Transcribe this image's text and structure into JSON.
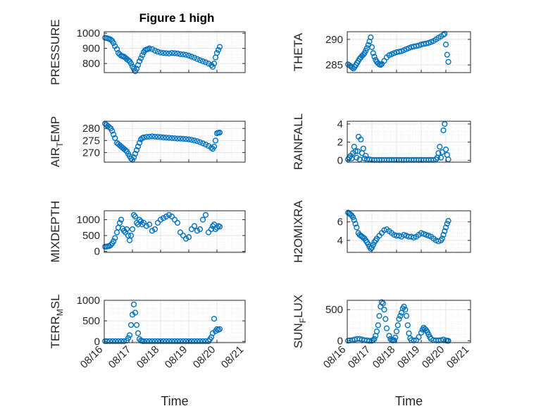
{
  "figure": {
    "title": "Figure 1 high"
  },
  "style": {
    "marker_color": "#0072BD",
    "grid_color": "#dedede",
    "axis_color": "#262626",
    "background": "#ffffff"
  },
  "chart_data": [
    {
      "type": "scatter",
      "id": "pressure",
      "ylabel": "PRESSURE",
      "ylabel_sub": null,
      "ylim": [
        740,
        1010
      ],
      "yticks": [
        800,
        900,
        1000
      ],
      "xlim": [
        0,
        5
      ],
      "xticks_visible": false,
      "x": [
        0.03,
        0.08,
        0.13,
        0.18,
        0.23,
        0.28,
        0.33,
        0.38,
        0.45,
        0.5,
        0.55,
        0.6,
        0.65,
        0.7,
        0.75,
        0.8,
        0.85,
        0.9,
        0.95,
        1.0,
        1.05,
        1.1,
        1.15,
        1.2,
        1.25,
        1.3,
        1.35,
        1.4,
        1.45,
        1.5,
        1.55,
        1.6,
        1.7,
        1.8,
        1.9,
        2.0,
        2.1,
        2.2,
        2.3,
        2.4,
        2.5,
        2.6,
        2.7,
        2.8,
        2.9,
        3.0,
        3.1,
        3.2,
        3.3,
        3.4,
        3.5,
        3.6,
        3.7,
        3.8,
        3.85,
        3.9,
        3.95,
        4.0,
        4.05,
        4.1
      ],
      "y": [
        970,
        968,
        966,
        962,
        958,
        950,
        935,
        915,
        895,
        870,
        860,
        852,
        848,
        845,
        838,
        830,
        822,
        815,
        800,
        780,
        765,
        750,
        765,
        790,
        815,
        835,
        855,
        875,
        888,
        892,
        895,
        900,
        895,
        885,
        878,
        872,
        870,
        868,
        866,
        870,
        868,
        866,
        862,
        860,
        858,
        852,
        845,
        838,
        830,
        822,
        815,
        808,
        800,
        790,
        778,
        800,
        840,
        870,
        890,
        910
      ]
    },
    {
      "type": "scatter",
      "id": "theta",
      "ylabel": "THETA",
      "ylabel_sub": null,
      "ylim": [
        283.5,
        291.5
      ],
      "yticks": [
        285,
        290
      ],
      "xlim": [
        0,
        5
      ],
      "xticks_visible": false,
      "x": [
        0.03,
        0.1,
        0.15,
        0.2,
        0.25,
        0.3,
        0.35,
        0.4,
        0.45,
        0.5,
        0.55,
        0.6,
        0.65,
        0.7,
        0.75,
        0.8,
        0.85,
        0.9,
        0.95,
        1.0,
        1.05,
        1.1,
        1.15,
        1.2,
        1.25,
        1.3,
        1.35,
        1.4,
        1.5,
        1.6,
        1.7,
        1.8,
        1.9,
        2.0,
        2.1,
        2.2,
        2.3,
        2.4,
        2.5,
        2.6,
        2.7,
        2.8,
        2.9,
        3.0,
        3.1,
        3.2,
        3.3,
        3.4,
        3.5,
        3.6,
        3.7,
        3.8,
        3.9,
        3.95,
        4.0,
        4.05,
        4.1
      ],
      "y": [
        285.1,
        284.9,
        284.7,
        284.5,
        284.3,
        284.6,
        285.0,
        285.4,
        285.8,
        286.2,
        286.5,
        286.8,
        287.0,
        287.3,
        287.8,
        288.3,
        288.9,
        289.6,
        290.4,
        288.5,
        287.3,
        286.6,
        286.0,
        285.6,
        285.3,
        285.1,
        285.0,
        285.2,
        285.8,
        286.5,
        286.9,
        287.1,
        287.3,
        287.5,
        287.6,
        287.7,
        287.9,
        288.1,
        288.3,
        288.5,
        288.6,
        288.7,
        288.8,
        289.0,
        289.1,
        289.2,
        289.3,
        289.5,
        289.7,
        290.0,
        290.3,
        290.6,
        290.9,
        291.1,
        289.0,
        287.0,
        285.6
      ]
    },
    {
      "type": "scatter",
      "id": "air_temp",
      "ylabel": "AIR_TEMP",
      "ylabel_parts": [
        "AIR",
        "T",
        "EMP"
      ],
      "ylim": [
        266,
        283
      ],
      "yticks": [
        270,
        275,
        280
      ],
      "xlim": [
        0,
        5
      ],
      "xticks_visible": false,
      "x": [
        0.03,
        0.08,
        0.13,
        0.18,
        0.23,
        0.28,
        0.33,
        0.38,
        0.45,
        0.5,
        0.55,
        0.6,
        0.65,
        0.7,
        0.75,
        0.8,
        0.85,
        0.9,
        0.95,
        1.0,
        1.05,
        1.1,
        1.15,
        1.2,
        1.25,
        1.3,
        1.35,
        1.4,
        1.5,
        1.6,
        1.7,
        1.8,
        1.9,
        2.0,
        2.1,
        2.2,
        2.3,
        2.4,
        2.5,
        2.6,
        2.7,
        2.8,
        2.9,
        3.0,
        3.1,
        3.2,
        3.3,
        3.4,
        3.5,
        3.6,
        3.7,
        3.8,
        3.85,
        3.9,
        3.95,
        4.0,
        4.05,
        4.1
      ],
      "y": [
        282,
        281.5,
        281,
        280.5,
        280,
        279,
        277.5,
        276,
        274,
        273.5,
        273,
        272.5,
        272,
        271.5,
        271,
        270.5,
        269.5,
        268.5,
        267.5,
        267,
        268,
        269.5,
        271,
        272.5,
        274,
        275.5,
        276,
        276.3,
        276.5,
        276.6,
        276.7,
        276.6,
        276.5,
        276.4,
        276.3,
        276.2,
        276.1,
        276,
        275.9,
        275.8,
        275.8,
        275.7,
        275.6,
        275.5,
        275.3,
        275,
        274.7,
        274.3,
        273.8,
        273.3,
        272.7,
        272,
        271.5,
        272.5,
        275,
        278,
        278.2,
        278.3
      ]
    },
    {
      "type": "scatter",
      "id": "rainfall",
      "ylabel": "RAINFALL",
      "ylabel_sub": null,
      "ylim": [
        -0.2,
        4.3
      ],
      "yticks": [
        0,
        2,
        4
      ],
      "xlim": [
        0,
        5
      ],
      "xticks_visible": false,
      "x": [
        0.03,
        0.08,
        0.13,
        0.18,
        0.23,
        0.28,
        0.33,
        0.38,
        0.42,
        0.46,
        0.5,
        0.55,
        0.6,
        0.65,
        0.7,
        0.75,
        0.8,
        0.9,
        1.0,
        1.1,
        1.2,
        1.3,
        1.4,
        1.5,
        1.6,
        1.7,
        1.8,
        1.9,
        2.0,
        2.1,
        2.2,
        2.3,
        2.4,
        2.5,
        2.6,
        2.7,
        2.8,
        2.9,
        3.0,
        3.1,
        3.2,
        3.3,
        3.4,
        3.5,
        3.6,
        3.65,
        3.7,
        3.75,
        3.8,
        3.85,
        3.9,
        3.95,
        4.0,
        4.05,
        4.1
      ],
      "y": [
        0.1,
        0.3,
        0.5,
        0.2,
        0.8,
        1.5,
        1.0,
        0.3,
        1.0,
        2.6,
        0.1,
        2.3,
        0.8,
        1.3,
        0.2,
        0.5,
        0.1,
        0.1,
        0.05,
        0.05,
        0.05,
        0.05,
        0.05,
        0.05,
        0.05,
        0.05,
        0.05,
        0.05,
        0.05,
        0.05,
        0.05,
        0.05,
        0.05,
        0.05,
        0.05,
        0.05,
        0.05,
        0.05,
        0.05,
        0.05,
        0.05,
        0.05,
        0.05,
        0.05,
        0.1,
        0.3,
        0.8,
        1.5,
        0.3,
        0.9,
        3.3,
        4.0,
        1.2,
        0.6,
        0.1
      ]
    },
    {
      "type": "scatter",
      "id": "mixdepth",
      "ylabel": "MIXDEPTH",
      "ylabel_sub": null,
      "ylim": [
        -30,
        1280
      ],
      "yticks": [
        0,
        500,
        1000
      ],
      "xlim": [
        0,
        5
      ],
      "xticks_visible": false,
      "x": [
        0.03,
        0.08,
        0.13,
        0.18,
        0.23,
        0.28,
        0.33,
        0.38,
        0.45,
        0.5,
        0.55,
        0.6,
        0.65,
        0.7,
        0.75,
        0.8,
        0.85,
        0.9,
        0.95,
        1.0,
        1.05,
        1.1,
        1.15,
        1.2,
        1.25,
        1.3,
        1.35,
        1.4,
        1.5,
        1.6,
        1.7,
        1.8,
        1.9,
        2.0,
        2.1,
        2.2,
        2.3,
        2.4,
        2.5,
        2.6,
        2.7,
        2.8,
        2.9,
        3.0,
        3.1,
        3.2,
        3.3,
        3.4,
        3.5,
        3.6,
        3.7,
        3.8,
        3.85,
        3.9,
        3.95,
        4.0,
        4.05,
        4.1
      ],
      "y": [
        150,
        150,
        160,
        170,
        200,
        250,
        320,
        420,
        600,
        750,
        900,
        1000,
        720,
        650,
        600,
        700,
        500,
        350,
        500,
        700,
        1150,
        1100,
        900,
        850,
        1000,
        950,
        850,
        900,
        800,
        850,
        650,
        700,
        900,
        1000,
        1050,
        1100,
        1150,
        1100,
        1000,
        900,
        600,
        500,
        400,
        450,
        700,
        800,
        650,
        700,
        1000,
        1150,
        600,
        700,
        800,
        850,
        700,
        750,
        800,
        780
      ]
    },
    {
      "type": "scatter",
      "id": "h2omixra",
      "ylabel": "H2OMIXRA",
      "ylabel_sub": null,
      "ylim": [
        2.7,
        7.2
      ],
      "yticks": [
        4,
        6
      ],
      "xlim": [
        0,
        5
      ],
      "xticks_visible": false,
      "x": [
        0.03,
        0.08,
        0.13,
        0.18,
        0.23,
        0.28,
        0.33,
        0.38,
        0.45,
        0.5,
        0.55,
        0.6,
        0.65,
        0.7,
        0.75,
        0.8,
        0.85,
        0.9,
        0.95,
        1.0,
        1.05,
        1.1,
        1.15,
        1.2,
        1.3,
        1.4,
        1.5,
        1.6,
        1.7,
        1.8,
        1.9,
        2.0,
        2.1,
        2.2,
        2.3,
        2.4,
        2.5,
        2.6,
        2.7,
        2.8,
        2.9,
        3.0,
        3.1,
        3.2,
        3.3,
        3.4,
        3.5,
        3.6,
        3.7,
        3.8,
        3.85,
        3.9,
        3.95,
        4.0,
        4.05,
        4.1
      ],
      "y": [
        7.0,
        6.9,
        6.8,
        6.7,
        6.5,
        6.2,
        5.8,
        5.4,
        4.8,
        4.6,
        4.5,
        4.4,
        4.3,
        4.2,
        4.0,
        3.8,
        3.6,
        3.3,
        3.1,
        3.2,
        3.5,
        3.8,
        4.0,
        4.2,
        4.5,
        4.8,
        5.1,
        5.2,
        5.0,
        4.8,
        4.6,
        4.5,
        4.5,
        4.4,
        4.6,
        4.5,
        4.4,
        4.4,
        4.3,
        4.4,
        4.6,
        4.8,
        4.7,
        4.6,
        4.5,
        4.4,
        4.2,
        4.0,
        3.9,
        4.0,
        4.2,
        4.6,
        5.0,
        5.4,
        5.8,
        6.1
      ]
    },
    {
      "type": "scatter",
      "id": "terr_msl",
      "ylabel": "TERR_MSL",
      "ylabel_parts": [
        "TERR",
        "M",
        "SL"
      ],
      "ylim": [
        -30,
        1000
      ],
      "yticks": [
        0,
        500,
        1000
      ],
      "xlim": [
        0,
        5
      ],
      "xticks_visible": true,
      "xticklabels": [
        "08/16",
        "08/17",
        "08/18",
        "08/19",
        "08/20",
        "08/21"
      ],
      "xlabel": "Time",
      "x": [
        0.03,
        0.1,
        0.2,
        0.3,
        0.4,
        0.5,
        0.6,
        0.7,
        0.8,
        0.85,
        0.9,
        0.95,
        1.0,
        1.05,
        1.1,
        1.15,
        1.2,
        1.25,
        1.3,
        1.35,
        1.4,
        1.5,
        1.6,
        1.7,
        1.8,
        1.9,
        2.0,
        2.1,
        2.2,
        2.3,
        2.4,
        2.5,
        2.6,
        2.7,
        2.8,
        2.9,
        3.0,
        3.1,
        3.2,
        3.3,
        3.4,
        3.5,
        3.6,
        3.7,
        3.75,
        3.8,
        3.85,
        3.9,
        3.95,
        4.0,
        4.05,
        4.1
      ],
      "y": [
        5,
        5,
        5,
        5,
        5,
        5,
        5,
        5,
        20,
        80,
        150,
        400,
        650,
        900,
        700,
        400,
        200,
        60,
        20,
        10,
        5,
        5,
        5,
        5,
        5,
        5,
        5,
        5,
        5,
        5,
        5,
        5,
        5,
        5,
        5,
        5,
        5,
        5,
        5,
        5,
        5,
        5,
        5,
        5,
        50,
        100,
        200,
        550,
        250,
        300,
        280,
        300
      ]
    },
    {
      "type": "scatter",
      "id": "sun_flux",
      "ylabel": "SUN_FLUX",
      "ylabel_parts": [
        "SUN",
        "F",
        "LUX"
      ],
      "ylim": [
        -30,
        650
      ],
      "yticks": [
        0,
        500
      ],
      "xlim": [
        0,
        5
      ],
      "xticks_visible": true,
      "xticklabels": [
        "08/16",
        "08/17",
        "08/18",
        "08/19",
        "08/20",
        "08/21"
      ],
      "xlabel": "Time",
      "x": [
        0.03,
        0.1,
        0.2,
        0.3,
        0.4,
        0.5,
        0.6,
        0.7,
        0.8,
        0.9,
        1.0,
        1.05,
        1.1,
        1.15,
        1.2,
        1.25,
        1.3,
        1.35,
        1.4,
        1.45,
        1.5,
        1.55,
        1.6,
        1.7,
        1.75,
        1.8,
        1.85,
        1.9,
        1.95,
        2.0,
        2.05,
        2.1,
        2.15,
        2.2,
        2.25,
        2.3,
        2.35,
        2.4,
        2.45,
        2.5,
        2.55,
        2.6,
        2.7,
        2.8,
        2.9,
        3.0,
        3.05,
        3.1,
        3.15,
        3.2,
        3.25,
        3.3,
        3.35,
        3.4,
        3.5,
        3.6,
        3.7,
        3.8,
        3.9,
        4.0,
        4.05,
        4.1
      ],
      "y": [
        0,
        5,
        10,
        20,
        30,
        30,
        20,
        10,
        5,
        0,
        0,
        10,
        30,
        80,
        150,
        250,
        400,
        550,
        620,
        600,
        500,
        350,
        200,
        80,
        30,
        10,
        5,
        10,
        50,
        150,
        250,
        350,
        400,
        450,
        520,
        550,
        500,
        400,
        250,
        120,
        40,
        10,
        5,
        10,
        60,
        130,
        180,
        210,
        190,
        170,
        140,
        100,
        60,
        30,
        10,
        5,
        5,
        10,
        20,
        5,
        0,
        0
      ]
    }
  ]
}
